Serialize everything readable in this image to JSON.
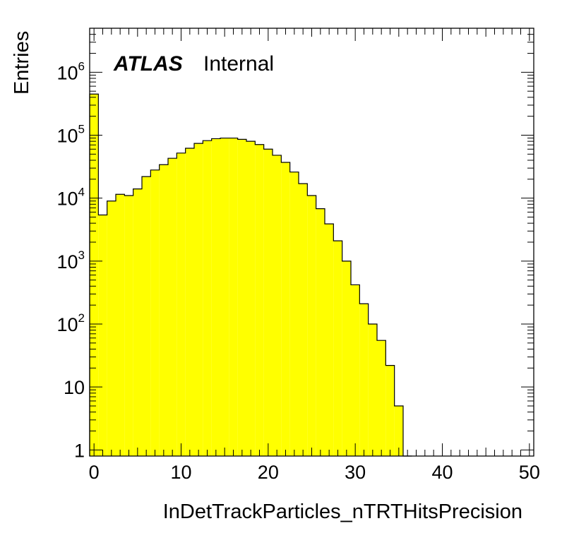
{
  "chart_data": {
    "type": "bar",
    "style": "histogram-step",
    "fill_color": "#ffff00",
    "line_color": "#000000",
    "xlabel": "InDetTrackParticles_nTRTHitsPrecision",
    "ylabel": "Entries",
    "xlim": [
      -0.5,
      50.5
    ],
    "ylim": [
      0.8,
      5000000
    ],
    "yscale": "log",
    "grid": false,
    "bin_width": 1,
    "bin_low_edges": [
      -0.5,
      0.5,
      1.5,
      2.5,
      3.5,
      4.5,
      5.5,
      6.5,
      7.5,
      8.5,
      9.5,
      10.5,
      11.5,
      12.5,
      13.5,
      14.5,
      15.5,
      16.5,
      17.5,
      18.5,
      19.5,
      20.5,
      21.5,
      22.5,
      23.5,
      24.5,
      25.5,
      26.5,
      27.5,
      28.5,
      29.5,
      30.5,
      31.5,
      32.5,
      33.5,
      34.5,
      35.5
    ],
    "values": [
      450000,
      5400,
      9000,
      11500,
      11000,
      14000,
      22000,
      28000,
      34000,
      43000,
      52000,
      62000,
      74000,
      82000,
      88000,
      90000,
      90000,
      86000,
      80000,
      71000,
      60000,
      48000,
      37000,
      26000,
      17000,
      11000,
      6800,
      3900,
      2100,
      1000,
      420,
      210,
      100,
      55,
      22,
      5,
      0
    ],
    "x_ticks": [
      "0",
      "10",
      "20",
      "30",
      "40",
      "50"
    ],
    "y_ticks": [
      {
        "base": "1",
        "exp": ""
      },
      {
        "base": "10",
        "exp": ""
      },
      {
        "base": "10",
        "exp": "2"
      },
      {
        "base": "10",
        "exp": "3"
      },
      {
        "base": "10",
        "exp": "4"
      },
      {
        "base": "10",
        "exp": "5"
      },
      {
        "base": "10",
        "exp": "6"
      }
    ],
    "y_tick_values": [
      1,
      10,
      100,
      1000,
      10000,
      100000,
      1000000
    ],
    "x_tick_values": [
      0,
      10,
      20,
      30,
      40,
      50
    ],
    "annotations": {
      "experiment": "ATLAS",
      "status": "Internal"
    }
  }
}
